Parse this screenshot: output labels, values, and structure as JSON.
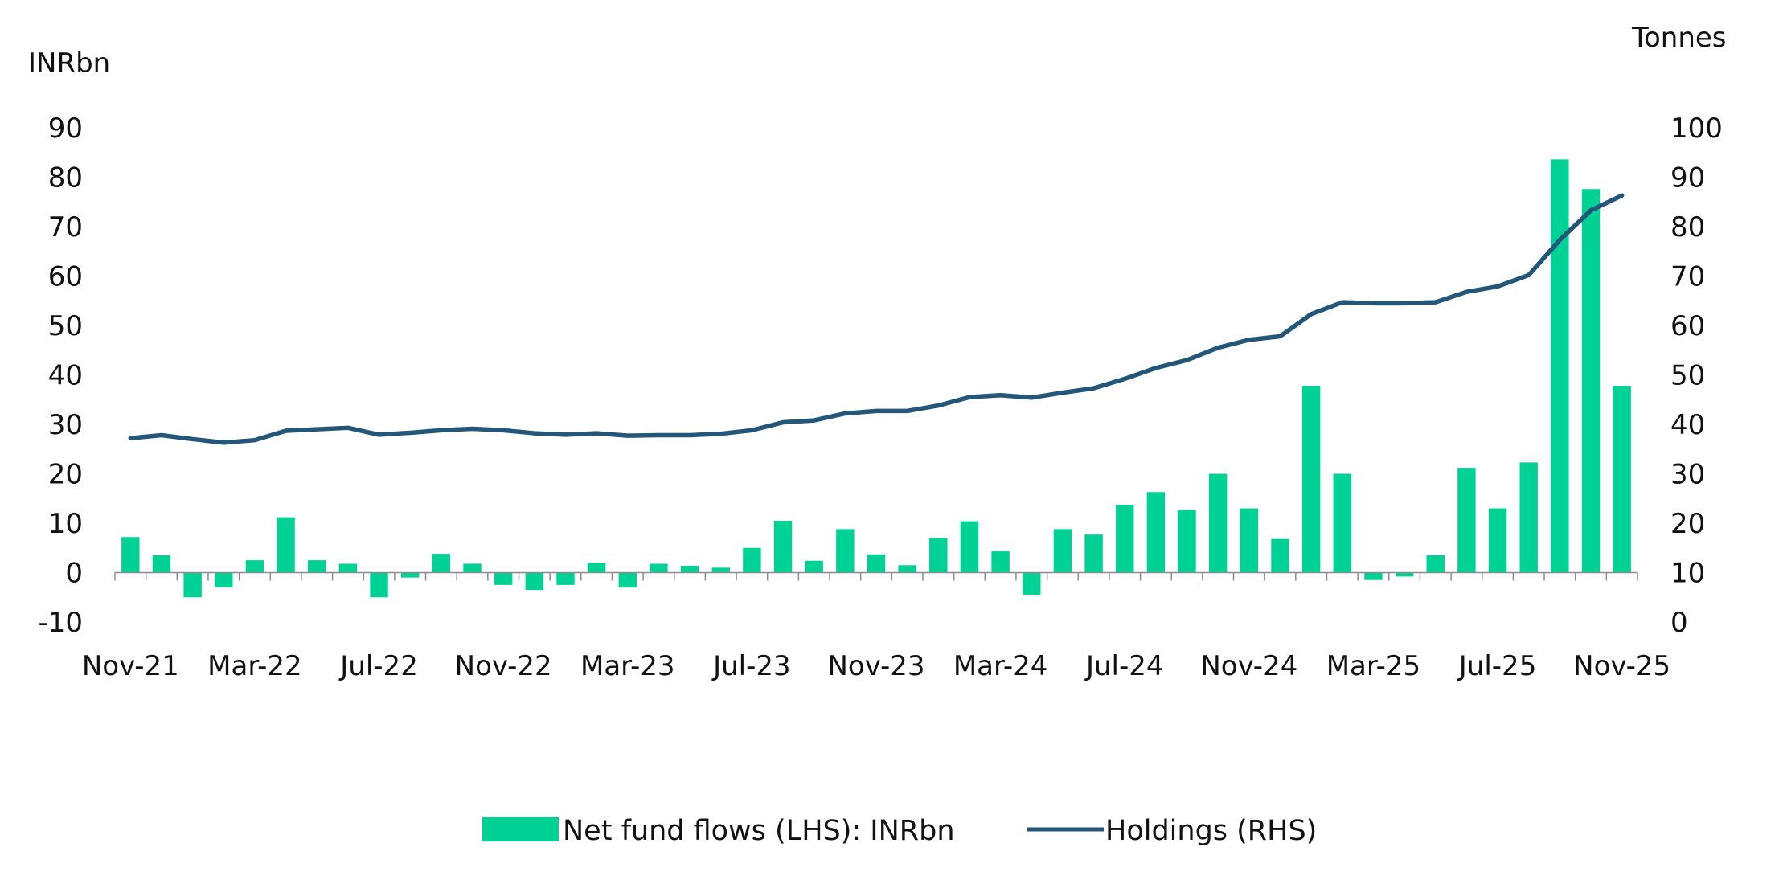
{
  "chart_data": {
    "type": "bar+line",
    "title": "",
    "left_axis_label": "INRbn",
    "right_axis_label": "Tonnes",
    "left_ylim": [
      -10,
      90
    ],
    "left_ticks": [
      -10,
      0,
      10,
      20,
      30,
      40,
      50,
      60,
      70,
      80,
      90
    ],
    "right_ylim": [
      0,
      100
    ],
    "right_ticks": [
      0,
      10,
      20,
      30,
      40,
      50,
      60,
      70,
      80,
      90,
      100
    ],
    "x_tick_labels": [
      "Nov-21",
      "Mar-22",
      "Jul-22",
      "Nov-22",
      "Mar-23",
      "Jul-23",
      "Nov-23",
      "Mar-24",
      "Jul-24",
      "Nov-24",
      "Mar-25",
      "Jul-25",
      "Nov-25"
    ],
    "x_tick_every": 4,
    "categories": [
      "Nov-21",
      "Dec-21",
      "Jan-22",
      "Feb-22",
      "Mar-22",
      "Apr-22",
      "May-22",
      "Jun-22",
      "Jul-22",
      "Aug-22",
      "Sep-22",
      "Oct-22",
      "Nov-22",
      "Dec-22",
      "Jan-23",
      "Feb-23",
      "Mar-23",
      "Apr-23",
      "May-23",
      "Jun-23",
      "Jul-23",
      "Aug-23",
      "Sep-23",
      "Oct-23",
      "Nov-23",
      "Dec-23",
      "Jan-24",
      "Feb-24",
      "Mar-24",
      "Apr-24",
      "May-24",
      "Jun-24",
      "Jul-24",
      "Aug-24",
      "Sep-24",
      "Oct-24",
      "Nov-24",
      "Dec-24",
      "Jan-25",
      "Feb-25",
      "Mar-25",
      "Apr-25",
      "May-25",
      "Jun-25",
      "Jul-25",
      "Aug-25",
      "Sep-25",
      "Oct-25",
      "Nov-25"
    ],
    "series": [
      {
        "name": "Net fund flows (LHS): INRbn",
        "type": "bar",
        "axis": "left",
        "color": "#00D296",
        "values": [
          7.2,
          3.5,
          -5.0,
          -3.0,
          2.5,
          11.2,
          2.5,
          1.8,
          -5.0,
          -1.0,
          3.8,
          1.8,
          -2.5,
          -3.5,
          -2.5,
          2.0,
          -3.0,
          1.8,
          1.4,
          1.0,
          5.0,
          10.5,
          2.4,
          8.8,
          3.7,
          1.5,
          7.0,
          10.4,
          4.3,
          -4.5,
          8.8,
          7.7,
          13.7,
          16.3,
          12.7,
          20.0,
          13.0,
          6.8,
          37.8,
          20.0,
          -1.5,
          -0.8,
          3.5,
          21.2,
          13.0,
          22.3,
          83.6,
          77.6,
          37.8
        ]
      },
      {
        "name": "Holdings (RHS)",
        "type": "line",
        "axis": "right",
        "color": "#235678",
        "values": [
          37.2,
          37.8,
          37.0,
          36.3,
          36.8,
          38.7,
          39.0,
          39.3,
          37.9,
          38.3,
          38.8,
          39.1,
          38.8,
          38.2,
          37.9,
          38.2,
          37.7,
          37.8,
          37.8,
          38.1,
          38.8,
          40.4,
          40.8,
          42.2,
          42.7,
          42.7,
          43.8,
          45.5,
          45.9,
          45.4,
          46.4,
          47.3,
          49.2,
          51.4,
          53.0,
          55.5,
          57.1,
          57.8,
          62.3,
          64.7,
          64.5,
          64.5,
          64.7,
          66.8,
          67.9,
          70.2,
          77.3,
          83.3,
          86.3
        ]
      }
    ],
    "legend": [
      "Net fund flows (LHS): INRbn",
      "Holdings (RHS)"
    ],
    "legend_position": "bottom-center",
    "grid": false
  }
}
